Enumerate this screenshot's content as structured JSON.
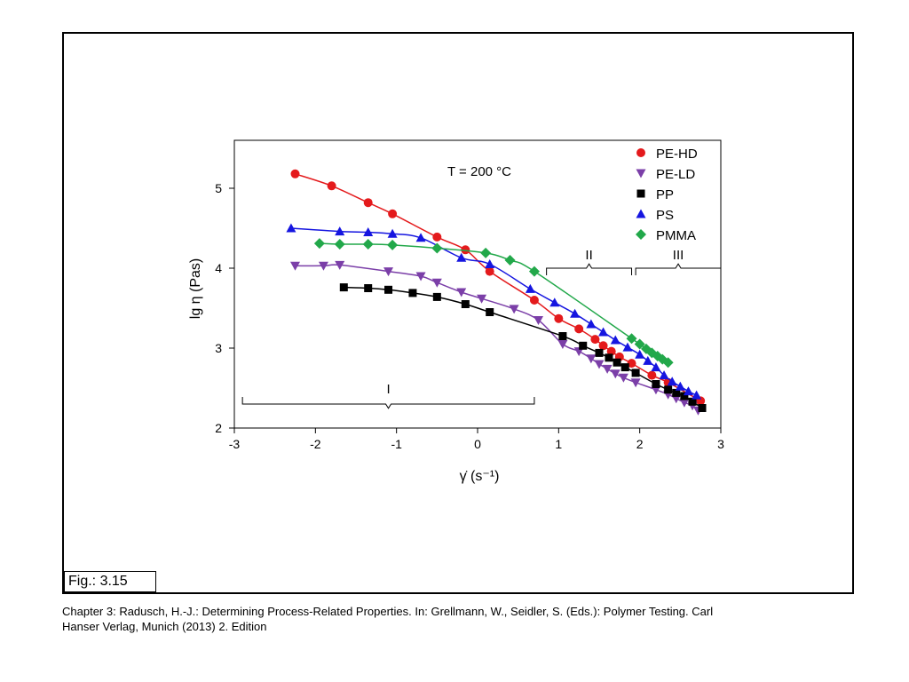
{
  "figure_label": "Fig.: 3.15",
  "caption_line1": "Chapter 3: Radusch, H.-J.: Determining Process-Related Properties. In: Grellmann, W., Seidler, S. (Eds.): Polymer Testing. Carl",
  "caption_line2": "Hanser Verlag, Munich (2013) 2. Edition",
  "colors": {
    "PE-HD": "#e41a1c",
    "PE-LD": "#7b3fa8",
    "PP": "#000000",
    "PS": "#1515e0",
    "PMMA": "#22a84a"
  },
  "chart_data": {
    "type": "scatter",
    "title": "",
    "annotation": "T = 200 °C",
    "xlabel": "γ̇ (s⁻¹)",
    "ylabel": "lg η (Pas)",
    "xlim": [
      -3,
      3
    ],
    "ylim": [
      2,
      5.6
    ],
    "xticks": [
      "-3",
      "-2",
      "-1",
      "0",
      "1",
      "2",
      "3"
    ],
    "yticks": [
      "2",
      "3",
      "4",
      "5"
    ],
    "legend_position": "top-right",
    "regions": [
      {
        "label": "I",
        "x_start": -2.9,
        "x_end": 0.7,
        "y": 2.3
      },
      {
        "label": "II",
        "x_start": 0.85,
        "x_end": 1.9,
        "y": 4.0
      },
      {
        "label": "III",
        "x_start": 1.95,
        "x_end": 3.0,
        "y": 4.0
      }
    ],
    "series": [
      {
        "name": "PE-HD",
        "marker": "circle",
        "x": [
          -2.25,
          -1.8,
          -1.35,
          -1.05,
          -0.5,
          -0.15,
          0.15,
          0.7,
          1.0,
          1.25,
          1.45,
          1.55,
          1.65,
          1.75,
          1.9,
          2.15,
          2.35,
          2.75
        ],
        "y": [
          5.18,
          5.03,
          4.82,
          4.68,
          4.39,
          4.23,
          3.96,
          3.6,
          3.37,
          3.24,
          3.11,
          3.03,
          2.96,
          2.89,
          2.81,
          2.66,
          2.57,
          2.34
        ]
      },
      {
        "name": "PE-LD",
        "marker": "triangle-down",
        "x": [
          -2.25,
          -1.9,
          -1.7,
          -1.1,
          -0.7,
          -0.5,
          -0.2,
          0.05,
          0.45,
          0.75,
          1.05,
          1.25,
          1.4,
          1.5,
          1.6,
          1.7,
          1.8,
          1.95,
          2.2,
          2.35,
          2.45,
          2.55,
          2.65,
          2.72
        ],
        "y": [
          4.03,
          4.03,
          4.04,
          3.96,
          3.9,
          3.82,
          3.7,
          3.62,
          3.49,
          3.35,
          3.05,
          2.96,
          2.87,
          2.8,
          2.74,
          2.68,
          2.63,
          2.57,
          2.48,
          2.42,
          2.37,
          2.32,
          2.28,
          2.22
        ]
      },
      {
        "name": "PP",
        "marker": "square",
        "x": [
          -1.65,
          -1.35,
          -1.1,
          -0.8,
          -0.5,
          -0.15,
          0.15,
          1.05,
          1.3,
          1.5,
          1.62,
          1.72,
          1.82,
          1.95,
          2.2,
          2.35,
          2.45,
          2.55,
          2.65,
          2.77
        ],
        "y": [
          3.76,
          3.75,
          3.73,
          3.69,
          3.64,
          3.55,
          3.45,
          3.15,
          3.03,
          2.94,
          2.88,
          2.82,
          2.76,
          2.69,
          2.55,
          2.48,
          2.44,
          2.4,
          2.33,
          2.25
        ]
      },
      {
        "name": "PS",
        "marker": "triangle-up",
        "x": [
          -2.3,
          -1.7,
          -1.35,
          -1.05,
          -0.7,
          -0.2,
          0.15,
          0.65,
          0.95,
          1.2,
          1.4,
          1.55,
          1.7,
          1.85,
          2.0,
          2.1,
          2.2,
          2.3,
          2.4,
          2.5,
          2.6,
          2.7
        ],
        "y": [
          4.5,
          4.46,
          4.45,
          4.43,
          4.38,
          4.13,
          4.05,
          3.74,
          3.57,
          3.43,
          3.3,
          3.2,
          3.1,
          3.01,
          2.92,
          2.84,
          2.76,
          2.66,
          2.58,
          2.52,
          2.46,
          2.41
        ]
      },
      {
        "name": "PMMA",
        "marker": "diamond",
        "x": [
          -1.95,
          -1.7,
          -1.35,
          -1.05,
          -0.5,
          0.1,
          0.4,
          0.7,
          1.9,
          2.0,
          2.08,
          2.15,
          2.22,
          2.28,
          2.35
        ],
        "y": [
          4.31,
          4.3,
          4.3,
          4.29,
          4.25,
          4.19,
          4.1,
          3.96,
          3.12,
          3.05,
          2.99,
          2.94,
          2.9,
          2.86,
          2.82
        ]
      }
    ]
  }
}
